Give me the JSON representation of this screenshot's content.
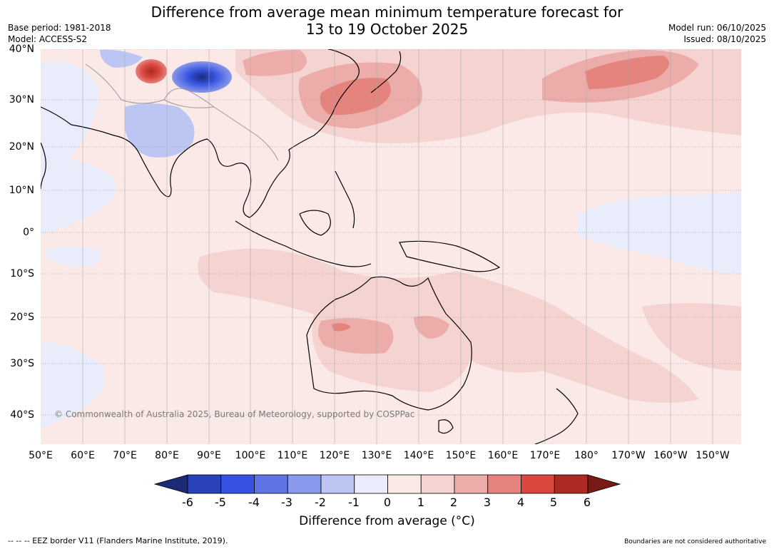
{
  "title": {
    "line1": "Difference from average mean minimum temperature forecast for",
    "line2": "13 to 19 October 2025"
  },
  "meta_left": {
    "base_period": "Base period: 1981-2018",
    "model": "Model: ACCESS-S2"
  },
  "meta_right": {
    "model_run": "Model run: 06/10/2025",
    "issued": "Issued: 08/10/2025"
  },
  "lat_labels": [
    "40°N",
    "30°N",
    "20°N",
    "10°N",
    "0°",
    "10°S",
    "20°S",
    "30°S",
    "40°S"
  ],
  "lon_labels": [
    "50°E",
    "60°E",
    "70°E",
    "80°E",
    "90°E",
    "100°E",
    "110°E",
    "120°E",
    "130°E",
    "140°E",
    "150°E",
    "160°E",
    "170°E",
    "180°",
    "170°W",
    "160°W",
    "150°W"
  ],
  "copyright": "© Commonwealth of Australia 2025, Bureau of Meteorology, supported by COSPPac",
  "colorbar": {
    "ticks": [
      "-6",
      "-5",
      "-4",
      "-3",
      "-2",
      "-1",
      "0",
      "1",
      "2",
      "3",
      "4",
      "5",
      "6"
    ],
    "colors": [
      "#1c2b78",
      "#2a42b8",
      "#3553e0",
      "#5e74e3",
      "#8898ea",
      "#bdc6f3",
      "#e8ecfb",
      "#fbe9e8",
      "#f5d3d1",
      "#ecadaa",
      "#e5837d",
      "#d9473f",
      "#ab2a22",
      "#7a1a14"
    ],
    "title": "Difference from average (°C)"
  },
  "footer": {
    "left": "--  --  -- EEZ border V11 (Flanders Marine Institute, 2019).",
    "right": "Boundaries are not considered authoritative"
  }
}
